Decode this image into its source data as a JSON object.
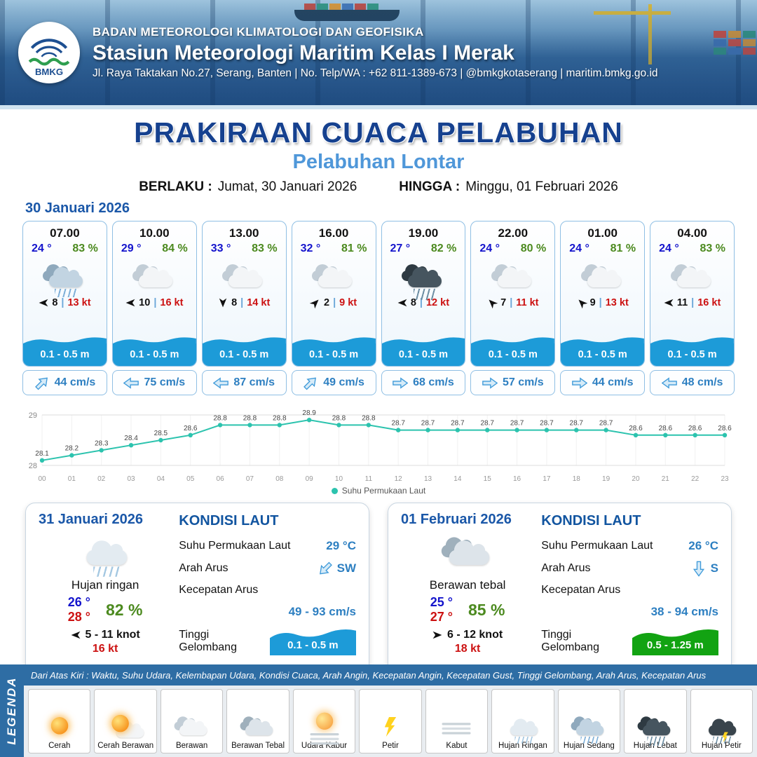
{
  "header": {
    "agency": "BADAN METEOROLOGI KLIMATOLOGI DAN GEOFISIKA",
    "station": "Stasiun Meteorologi Maritim Kelas I Merak",
    "address": "Jl. Raya Taktakan No.27, Serang, Banten | No. Telp/WA : +62 811-1389-673 | @bmkgkotaserang | maritim.bmkg.go.id",
    "logo_text": "BMKG"
  },
  "title": {
    "main": "PRAKIRAAN CUACA PELABUHAN",
    "port": "Pelabuhan Lontar",
    "valid_label": "BERLAKU :",
    "valid_value": "Jumat, 30 Januari 2026",
    "until_label": "HINGGA :",
    "until_value": "Minggu, 01 Februari 2026"
  },
  "forecast_date": "30 Januari 2026",
  "hourly": [
    {
      "time": "07.00",
      "temp": "24 °",
      "rh": "83 %",
      "icon": "hujan-sedang",
      "wind_dir": "W",
      "wind_speed": "8",
      "gust": "13 kt",
      "wave": "0.1 - 0.5 m",
      "current_dir": "NE",
      "current": "44 cm/s"
    },
    {
      "time": "10.00",
      "temp": "29 °",
      "rh": "84 %",
      "icon": "berawan",
      "wind_dir": "W",
      "wind_speed": "10",
      "gust": "16 kt",
      "wave": "0.1 - 0.5 m",
      "current_dir": "W",
      "current": "75 cm/s"
    },
    {
      "time": "13.00",
      "temp": "33 °",
      "rh": "83 %",
      "icon": "berawan",
      "wind_dir": "S",
      "wind_speed": "8",
      "gust": "14 kt",
      "wave": "0.1 - 0.5 m",
      "current_dir": "W",
      "current": "87 cm/s"
    },
    {
      "time": "16.00",
      "temp": "32 °",
      "rh": "81 %",
      "icon": "berawan",
      "wind_dir": "NE",
      "wind_speed": "2",
      "gust": "9 kt",
      "wave": "0.1 - 0.5 m",
      "current_dir": "NE",
      "current": "49 cm/s"
    },
    {
      "time": "19.00",
      "temp": "27 °",
      "rh": "82 %",
      "icon": "hujan-lebat",
      "wind_dir": "W",
      "wind_speed": "8",
      "gust": "12 kt",
      "wave": "0.1 - 0.5 m",
      "current_dir": "E",
      "current": "68 cm/s"
    },
    {
      "time": "22.00",
      "temp": "24 °",
      "rh": "80 %",
      "icon": "berawan",
      "wind_dir": "NW",
      "wind_speed": "7",
      "gust": "11 kt",
      "wave": "0.1 - 0.5 m",
      "current_dir": "E",
      "current": "57 cm/s"
    },
    {
      "time": "01.00",
      "temp": "24 °",
      "rh": "81 %",
      "icon": "berawan",
      "wind_dir": "NW",
      "wind_speed": "9",
      "gust": "13 kt",
      "wave": "0.1 - 0.5 m",
      "current_dir": "E",
      "current": "44 cm/s"
    },
    {
      "time": "04.00",
      "temp": "24 °",
      "rh": "83 %",
      "icon": "berawan",
      "wind_dir": "W",
      "wind_speed": "11",
      "gust": "16 kt",
      "wave": "0.1 - 0.5 m",
      "current_dir": "W",
      "current": "48 cm/s"
    }
  ],
  "chart_data": {
    "type": "line",
    "x": [
      "00",
      "01",
      "02",
      "03",
      "04",
      "05",
      "06",
      "07",
      "08",
      "09",
      "10",
      "11",
      "12",
      "13",
      "14",
      "15",
      "16",
      "17",
      "18",
      "19",
      "20",
      "21",
      "22",
      "23"
    ],
    "series": [
      {
        "name": "Suhu Permukaan Laut",
        "values": [
          28.1,
          28.2,
          28.3,
          28.4,
          28.5,
          28.6,
          28.8,
          28.8,
          28.8,
          28.9,
          28.8,
          28.8,
          28.7,
          28.7,
          28.7,
          28.7,
          28.7,
          28.7,
          28.7,
          28.7,
          28.6,
          28.6,
          28.6,
          28.6
        ]
      }
    ],
    "ylim": [
      28,
      29
    ],
    "line_color": "#2cc3ae",
    "grid": true,
    "legend_position": "bottom"
  },
  "daily": [
    {
      "date": "31 Januari 2026",
      "icon": "hujan-ringan",
      "condition": "Hujan ringan",
      "temp_min": "26 °",
      "temp_max": "28 °",
      "rh": "82 %",
      "wind_dir": "W",
      "wind_range": "5 - 11 knot",
      "gust": "16 kt",
      "sea": {
        "title": "KONDISI LAUT",
        "sst_label": "Suhu Permukaan Laut",
        "sst": "29 °C",
        "dir_label": "Arah Arus",
        "dir": "SW",
        "speed_label": "Kecepatan Arus",
        "speed": "49 - 93 cm/s",
        "wave_label": "Tinggi Gelombang",
        "wave": "0.1 - 0.5 m",
        "wave_color": "#1d9bd8"
      }
    },
    {
      "date": "01 Februari 2026",
      "icon": "berawan-tebal",
      "condition": "Berawan tebal",
      "temp_min": "25 °",
      "temp_max": "27 °",
      "rh": "85 %",
      "wind_dir": "E",
      "wind_range": "6 - 12 knot",
      "gust": "18 kt",
      "sea": {
        "title": "KONDISI LAUT",
        "sst_label": "Suhu Permukaan Laut",
        "sst": "26 °C",
        "dir_label": "Arah Arus",
        "dir": "S",
        "speed_label": "Kecepatan Arus",
        "speed": "38 - 94 cm/s",
        "wave_label": "Tinggi Gelombang",
        "wave": "0.5 - 1.25 m",
        "wave_color": "#12a312"
      }
    }
  ],
  "legend": {
    "title": "LEGENDA",
    "bar_text": "Dari Atas Kiri : Waktu, Suhu Udara, Kelembapan Udara, Kondisi Cuaca, Arah Angin, Kecepatan Angin, Kecepatan Gust, Tinggi Gelombang, Arah Arus, Kecepatan Arus",
    "items": [
      {
        "label": "Cerah",
        "icon": "cerah"
      },
      {
        "label": "Cerah Berawan",
        "icon": "cerah-berawan"
      },
      {
        "label": "Berawan",
        "icon": "berawan"
      },
      {
        "label": "Berawan Tebal",
        "icon": "berawan-tebal"
      },
      {
        "label": "Udara Kabur",
        "icon": "udara-kabur"
      },
      {
        "label": "Petir",
        "icon": "petir"
      },
      {
        "label": "Kabut",
        "icon": "kabut"
      },
      {
        "label": "Hujan Ringan",
        "icon": "hujan-ringan"
      },
      {
        "label": "Hujan Sedang",
        "icon": "hujan-sedang"
      },
      {
        "label": "Hujan Lebat",
        "icon": "hujan-lebat"
      },
      {
        "label": "Hujan Petir",
        "icon": "hujan-petir"
      }
    ]
  }
}
